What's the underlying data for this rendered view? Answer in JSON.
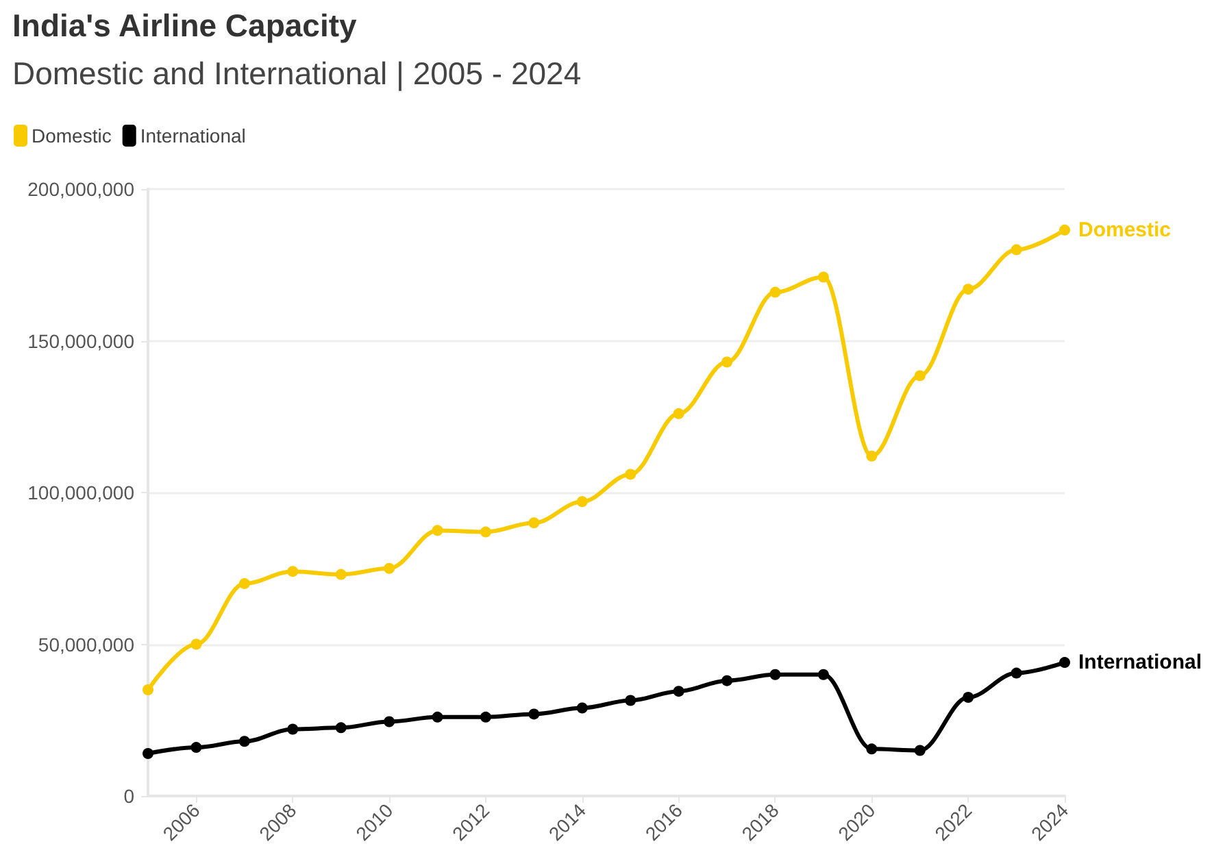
{
  "chart_data": {
    "type": "line",
    "title": "India's Airline Capacity",
    "subtitle": "Domestic and International | 2005 - 2024",
    "x": [
      2005,
      2006,
      2007,
      2008,
      2009,
      2010,
      2011,
      2012,
      2013,
      2014,
      2015,
      2016,
      2017,
      2018,
      2019,
      2020,
      2021,
      2022,
      2023,
      2024
    ],
    "series": [
      {
        "name": "Domestic",
        "color": "#f8cb00",
        "values": [
          35000000,
          50000000,
          70000000,
          74000000,
          73000000,
          75000000,
          87500000,
          87000000,
          90000000,
          97000000,
          106000000,
          126000000,
          143000000,
          166000000,
          171000000,
          112000000,
          138500000,
          167000000,
          180000000,
          186500000
        ]
      },
      {
        "name": "International",
        "color": "#000000",
        "values": [
          14000000,
          16000000,
          18000000,
          22000000,
          22500000,
          24500000,
          26000000,
          26000000,
          27000000,
          29000000,
          31500000,
          34500000,
          38000000,
          40000000,
          40000000,
          15500000,
          15000000,
          32500000,
          40500000,
          44000000
        ]
      }
    ],
    "xlim": [
      2005,
      2024
    ],
    "xticks": [
      2006,
      2008,
      2010,
      2012,
      2014,
      2016,
      2018,
      2020,
      2022,
      2024
    ],
    "ylim": [
      0,
      200000000
    ],
    "yticks": [
      0,
      {
        "value": 50000000,
        "label": "50,000,000"
      },
      {
        "value": 100000000,
        "label": "100,000,000"
      },
      {
        "value": 150000000,
        "label": "150,000,000"
      },
      {
        "value": 200000000,
        "label": "200,000,000"
      }
    ],
    "grid": "y",
    "legend": "top left",
    "marker": "circle"
  }
}
